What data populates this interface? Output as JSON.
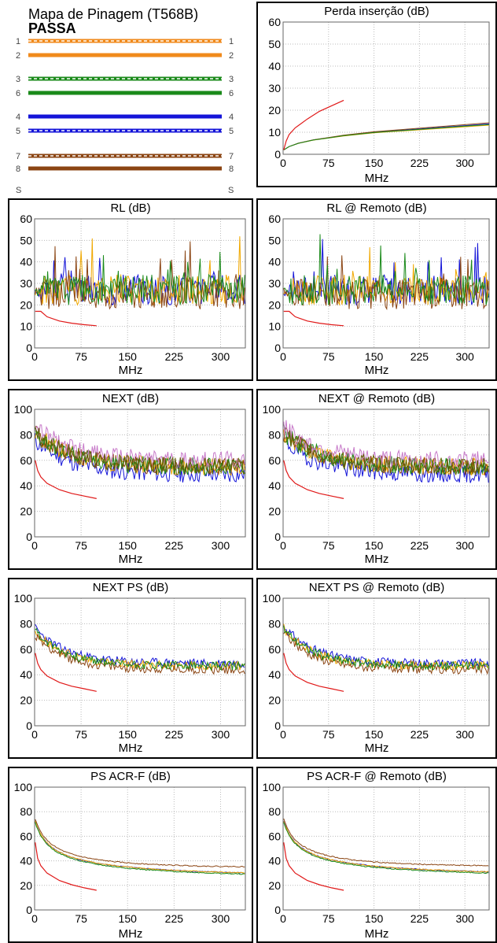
{
  "wiremap": {
    "title": "Mapa de Pinagem (T568B)",
    "status": "PASSA",
    "wires": [
      {
        "left": "1",
        "right": "1",
        "color": "#f08a1c",
        "striped": true
      },
      {
        "left": "2",
        "right": "2",
        "color": "#f08a1c",
        "striped": false
      },
      {
        "left": "3",
        "right": "3",
        "color": "#1a8a1a",
        "striped": true
      },
      {
        "left": "6",
        "right": "6",
        "color": "#1a8a1a",
        "striped": false
      },
      {
        "left": "4",
        "right": "4",
        "color": "#1414d8",
        "striped": false
      },
      {
        "left": "5",
        "right": "5",
        "color": "#1414d8",
        "striped": true
      },
      {
        "left": "7",
        "right": "7",
        "color": "#8b4513",
        "striped": true
      },
      {
        "left": "8",
        "right": "8",
        "color": "#8b4513",
        "striped": false
      }
    ],
    "shield": {
      "left": "S",
      "right": "S"
    }
  },
  "colors": {
    "limit": "#e01818",
    "series": [
      "#1414d8",
      "#f0a800",
      "#8b4513",
      "#1a8a1a",
      "#c77ac9",
      "#606000"
    ]
  },
  "chart_data": [
    {
      "id": "perda",
      "type": "line",
      "title": "Perda inserção (dB)",
      "xlabel": "MHz",
      "xticks": [
        "0",
        "75",
        "150",
        "225",
        "300"
      ],
      "yticks": [
        "0",
        "10",
        "20",
        "30",
        "40",
        "50",
        "60"
      ],
      "xlim": [
        0,
        340
      ],
      "ylim": [
        0,
        60
      ],
      "grid": true,
      "series": [
        {
          "kind": "pairs",
          "x": [
            1,
            10,
            25,
            50,
            75,
            100,
            150,
            200,
            250,
            300,
            340
          ],
          "y": [
            2,
            3.5,
            5,
            6.5,
            7.5,
            8.5,
            10,
            11,
            12,
            13,
            13.8
          ]
        },
        {
          "kind": "limit",
          "x": [
            1,
            5,
            10,
            20,
            40,
            60,
            80,
            100
          ],
          "y": [
            2,
            6,
            9,
            12,
            16,
            19.5,
            22,
            24.5
          ]
        }
      ]
    },
    {
      "id": "rl",
      "type": "line",
      "title": "RL (dB)",
      "xlabel": "MHz",
      "xticks": [
        "0",
        "75",
        "150",
        "225",
        "300"
      ],
      "yticks": [
        "0",
        "10",
        "20",
        "30",
        "40",
        "50",
        "60"
      ],
      "xlim": [
        0,
        340
      ],
      "ylim": [
        0,
        60
      ],
      "grid": true,
      "series": [
        {
          "kind": "noisy",
          "base": 27,
          "spread": 14,
          "seed": 3
        },
        {
          "kind": "limit",
          "x": [
            1,
            10,
            20,
            40,
            60,
            80,
            100
          ],
          "y": [
            17,
            17,
            14.5,
            12.5,
            11.5,
            10.8,
            10.3
          ]
        }
      ]
    },
    {
      "id": "rl_remoto",
      "type": "line",
      "title": "RL @ Remoto (dB)",
      "xlabel": "MHz",
      "xticks": [
        "0",
        "75",
        "150",
        "225",
        "300"
      ],
      "yticks": [
        "0",
        "10",
        "20",
        "30",
        "40",
        "50",
        "60"
      ],
      "xlim": [
        0,
        340
      ],
      "ylim": [
        0,
        60
      ],
      "grid": true,
      "series": [
        {
          "kind": "noisy",
          "base": 27,
          "spread": 14,
          "seed": 7
        },
        {
          "kind": "limit",
          "x": [
            1,
            10,
            20,
            40,
            60,
            80,
            100
          ],
          "y": [
            17,
            17,
            14.5,
            12.5,
            11.5,
            10.8,
            10.3
          ]
        }
      ]
    },
    {
      "id": "next",
      "type": "line",
      "title": "NEXT (dB)",
      "xlabel": "MHz",
      "xticks": [
        "0",
        "75",
        "150",
        "225",
        "300"
      ],
      "yticks": [
        "0",
        "20",
        "40",
        "60",
        "80",
        "100"
      ],
      "xlim": [
        0,
        340
      ],
      "ylim": [
        0,
        100
      ],
      "grid": true,
      "series": [
        {
          "kind": "decay",
          "start": 82,
          "end": 55,
          "spread": 14,
          "seed": 11
        },
        {
          "kind": "limit",
          "x": [
            1,
            5,
            10,
            20,
            40,
            60,
            80,
            100
          ],
          "y": [
            60,
            52,
            47,
            42,
            37,
            34,
            32,
            30
          ]
        }
      ]
    },
    {
      "id": "next_remoto",
      "type": "line",
      "title": "NEXT @ Remoto (dB)",
      "xlabel": "MHz",
      "xticks": [
        "0",
        "75",
        "150",
        "225",
        "300"
      ],
      "yticks": [
        "0",
        "20",
        "40",
        "60",
        "80",
        "100"
      ],
      "xlim": [
        0,
        340
      ],
      "ylim": [
        0,
        100
      ],
      "grid": true,
      "series": [
        {
          "kind": "decay",
          "start": 82,
          "end": 55,
          "spread": 14,
          "seed": 19
        },
        {
          "kind": "limit",
          "x": [
            1,
            5,
            10,
            20,
            40,
            60,
            80,
            100
          ],
          "y": [
            60,
            52,
            47,
            42,
            37,
            34,
            32,
            30
          ]
        }
      ]
    },
    {
      "id": "nextps",
      "type": "line",
      "title": "NEXT PS  (dB)",
      "xlabel": "MHz",
      "xticks": [
        "0",
        "75",
        "150",
        "225",
        "300"
      ],
      "yticks": [
        "0",
        "20",
        "40",
        "60",
        "80",
        "100"
      ],
      "xlim": [
        0,
        340
      ],
      "ylim": [
        0,
        100
      ],
      "grid": true,
      "series": [
        {
          "kind": "decay4",
          "start": 75,
          "end": 47,
          "spread": 7,
          "seed": 23
        },
        {
          "kind": "limit",
          "x": [
            1,
            5,
            10,
            20,
            40,
            60,
            80,
            100
          ],
          "y": [
            57,
            49,
            44,
            39,
            34,
            31,
            29,
            27
          ]
        }
      ]
    },
    {
      "id": "nextps_remoto",
      "type": "line",
      "title": "NEXT PS  @ Remoto (dB)",
      "xlabel": "MHz",
      "xticks": [
        "0",
        "75",
        "150",
        "225",
        "300"
      ],
      "yticks": [
        "0",
        "20",
        "40",
        "60",
        "80",
        "100"
      ],
      "xlim": [
        0,
        340
      ],
      "ylim": [
        0,
        100
      ],
      "grid": true,
      "series": [
        {
          "kind": "decay4",
          "start": 77,
          "end": 47,
          "spread": 7,
          "seed": 31
        },
        {
          "kind": "limit",
          "x": [
            1,
            5,
            10,
            20,
            40,
            60,
            80,
            100
          ],
          "y": [
            57,
            49,
            44,
            39,
            34,
            31,
            29,
            27
          ]
        }
      ]
    },
    {
      "id": "psacrf",
      "type": "line",
      "title": "PS ACR-F (dB)",
      "xlabel": "MHz",
      "xticks": [
        "0",
        "75",
        "150",
        "225",
        "300"
      ],
      "yticks": [
        "0",
        "20",
        "40",
        "60",
        "80",
        "100"
      ],
      "xlim": [
        0,
        340
      ],
      "ylim": [
        0,
        100
      ],
      "grid": true,
      "series": [
        {
          "kind": "smooth4",
          "start": 75,
          "end": 22,
          "seed": 41
        },
        {
          "kind": "limit",
          "x": [
            1,
            5,
            10,
            20,
            40,
            60,
            80,
            100
          ],
          "y": [
            55,
            42,
            36,
            30,
            24,
            20.5,
            18,
            16
          ]
        }
      ]
    },
    {
      "id": "psacrf_remoto",
      "type": "line",
      "title": "PS ACR-F @ Remoto (dB)",
      "xlabel": "MHz",
      "xticks": [
        "0",
        "75",
        "150",
        "225",
        "300"
      ],
      "yticks": [
        "0",
        "20",
        "40",
        "60",
        "80",
        "100"
      ],
      "xlim": [
        0,
        340
      ],
      "ylim": [
        0,
        100
      ],
      "grid": true,
      "series": [
        {
          "kind": "smooth4",
          "start": 75,
          "end": 23,
          "seed": 43
        },
        {
          "kind": "limit",
          "x": [
            1,
            5,
            10,
            20,
            40,
            60,
            80,
            100
          ],
          "y": [
            55,
            42,
            36,
            30,
            24,
            20.5,
            18,
            16
          ]
        }
      ]
    }
  ]
}
